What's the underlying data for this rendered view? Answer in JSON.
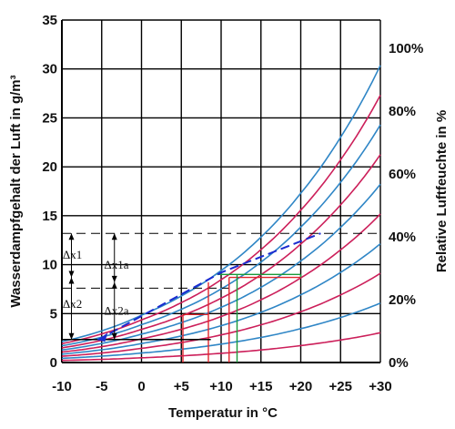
{
  "chart_data": {
    "type": "line",
    "xlabel": "Temperatur in °C",
    "ylabel": "Wasserdampfgehalt der Luft in g/m³",
    "y2label": "Relative Luftfeuchte in %",
    "xlim": [
      -10,
      30
    ],
    "ylim": [
      0,
      35
    ],
    "x_ticks": [
      "-10",
      "-5",
      "0",
      "+5",
      "+10",
      "+15",
      "+20",
      "+25",
      "+30"
    ],
    "y_ticks": [
      "0",
      "5",
      "10",
      "15",
      "20",
      "25",
      "30",
      "35"
    ],
    "y2_ticks": [
      "0%",
      "20%",
      "40%",
      "60%",
      "80%",
      "100%"
    ],
    "grid": true,
    "x_step": 5,
    "y_step": 5,
    "y2_tick_values": [
      0,
      6.42,
      12.84,
      19.26,
      25.68,
      32.1
    ],
    "series": [
      {
        "rh": 10,
        "color": "#cc1f5a",
        "x": [
          -10,
          -5,
          0,
          5,
          10,
          15,
          20,
          25,
          30
        ],
        "y": [
          0.21,
          0.32,
          0.48,
          0.68,
          0.94,
          1.28,
          1.73,
          2.3,
          3.04
        ]
      },
      {
        "rh": 20,
        "color": "#2f86c6",
        "x": [
          -10,
          -5,
          0,
          5,
          10,
          15,
          20,
          25,
          30
        ],
        "y": [
          0.43,
          0.65,
          0.97,
          1.36,
          1.88,
          2.56,
          3.46,
          4.6,
          6.07
        ]
      },
      {
        "rh": 30,
        "color": "#cc1f5a",
        "x": [
          -10,
          -5,
          0,
          5,
          10,
          15,
          20,
          25,
          30
        ],
        "y": [
          0.64,
          0.97,
          1.45,
          2.04,
          2.82,
          3.85,
          5.19,
          6.91,
          9.11
        ]
      },
      {
        "rh": 40,
        "color": "#2f86c6",
        "x": [
          -10,
          -5,
          0,
          5,
          10,
          15,
          20,
          25,
          30
        ],
        "y": [
          0.86,
          1.3,
          1.94,
          2.72,
          3.76,
          5.13,
          6.92,
          9.21,
          12.14
        ]
      },
      {
        "rh": 50,
        "color": "#cc1f5a",
        "x": [
          -10,
          -5,
          0,
          5,
          10,
          15,
          20,
          25,
          30
        ],
        "y": [
          1.07,
          1.62,
          2.42,
          3.4,
          4.7,
          6.41,
          8.65,
          11.51,
          15.18
        ]
      },
      {
        "rh": 60,
        "color": "#2f86c6",
        "x": [
          -10,
          -5,
          0,
          5,
          10,
          15,
          20,
          25,
          30
        ],
        "y": [
          1.28,
          1.95,
          2.9,
          4.08,
          5.64,
          7.69,
          10.38,
          13.81,
          18.22
        ]
      },
      {
        "rh": 70,
        "color": "#cc1f5a",
        "x": [
          -10,
          -5,
          0,
          5,
          10,
          15,
          20,
          25,
          30
        ],
        "y": [
          1.5,
          2.27,
          3.39,
          4.76,
          6.58,
          8.97,
          12.11,
          16.11,
          21.25
        ]
      },
      {
        "rh": 80,
        "color": "#2f86c6",
        "x": [
          -10,
          -5,
          0,
          5,
          10,
          15,
          20,
          25,
          30
        ],
        "y": [
          1.71,
          2.59,
          3.87,
          5.44,
          7.52,
          10.26,
          13.84,
          18.42,
          24.29
        ]
      },
      {
        "rh": 90,
        "color": "#cc1f5a",
        "x": [
          -10,
          -5,
          0,
          5,
          10,
          15,
          20,
          25,
          30
        ],
        "y": [
          1.93,
          2.92,
          4.36,
          6.12,
          8.46,
          11.54,
          15.57,
          20.72,
          27.32
        ]
      },
      {
        "rh": 100,
        "color": "#2f86c6",
        "x": [
          -10,
          -5,
          0,
          5,
          10,
          15,
          20,
          25,
          30
        ],
        "y": [
          2.14,
          3.24,
          4.84,
          6.8,
          9.4,
          12.82,
          17.3,
          23.02,
          30.36
        ]
      }
    ],
    "annotations": {
      "dx1_label": "Δx1",
      "dx2_label": "Δx2",
      "dx1a_label": "Δx1a",
      "dx2a_label": "Δx2a",
      "path_points": [
        [
          -5.5,
          2.3
        ],
        [
          10,
          9.2
        ],
        [
          22.5,
          13.2
        ]
      ],
      "dashed_levels": [
        13.2,
        7.6
      ],
      "red_lines": [
        {
          "x": 5.2,
          "y": 4.9
        },
        {
          "x": 8.4,
          "y": 8.2
        },
        {
          "x": 11.0,
          "y": 8.7
        }
      ],
      "green_lines": [
        {
          "x": 12.0,
          "y": 9.0
        }
      ]
    }
  }
}
